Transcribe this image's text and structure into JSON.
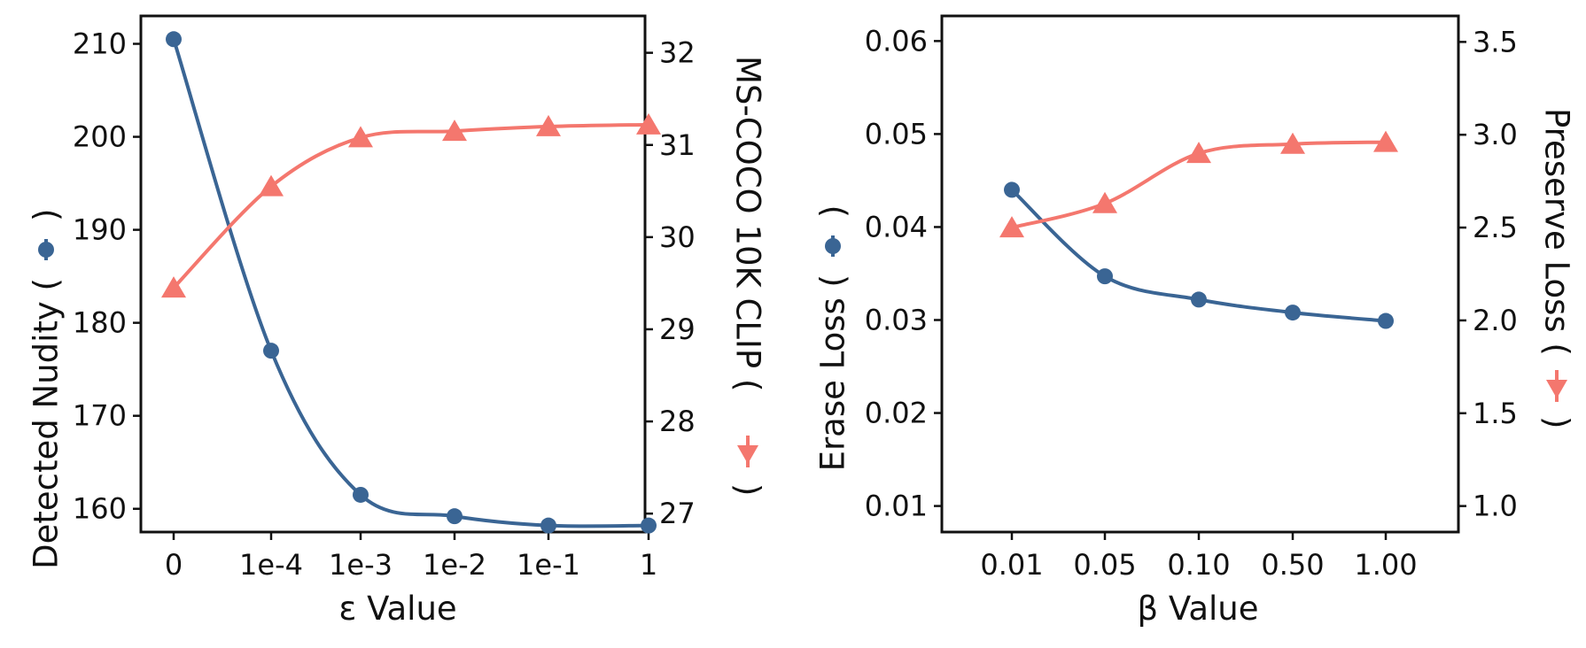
{
  "colors": {
    "blue": "#3a6594",
    "red": "#f4776e",
    "axis": "#111111"
  },
  "chart_data": [
    {
      "type": "line",
      "xlabel": "ε Value",
      "ylabel_left": "Detected Nudity (",
      "ylabel_left_close": ")",
      "ylabel_right": "MS-COCO 10K CLIP (",
      "ylabel_right_close": ")",
      "categories": [
        "0",
        "1e-4",
        "1e-3",
        "1e-2",
        "1e-1",
        "1"
      ],
      "left_axis": {
        "ylim": [
          157.5,
          213
        ],
        "ticks": [
          160,
          170,
          180,
          190,
          200,
          210
        ]
      },
      "right_axis": {
        "ylim": [
          26.8,
          32.4
        ],
        "ticks": [
          27,
          28,
          29,
          30,
          31,
          32
        ]
      },
      "series": [
        {
          "axis": "left",
          "marker": "circle",
          "color": "#3a6594",
          "values": [
            210.5,
            177,
            161.5,
            159.2,
            158.2,
            158.2
          ]
        },
        {
          "axis": "right",
          "marker": "triangle",
          "color": "#f4776e",
          "values": [
            29.45,
            30.55,
            31.08,
            31.15,
            31.2,
            31.22
          ]
        }
      ],
      "grid": false
    },
    {
      "type": "line",
      "xlabel": "β Value",
      "ylabel_left": "Erase Loss (",
      "ylabel_left_close": ")",
      "ylabel_right": "Preserve Loss (",
      "ylabel_right_close": ")",
      "categories": [
        "0.01",
        "0.05",
        "0.10",
        "0.50",
        "1.00"
      ],
      "left_axis": {
        "ylim": [
          0.0072,
          0.0627
        ],
        "ticks": [
          0.01,
          0.02,
          0.03,
          0.04,
          0.05,
          0.06
        ],
        "tick_labels": [
          "0.01",
          "0.02",
          "0.03",
          "0.04",
          "0.05",
          "0.06"
        ]
      },
      "right_axis": {
        "ylim": [
          0.86,
          3.64
        ],
        "ticks": [
          1.0,
          1.5,
          2.0,
          2.5,
          3.0,
          3.5
        ],
        "tick_labels": [
          "1.0",
          "1.5",
          "2.0",
          "2.5",
          "3.0",
          "3.5"
        ]
      },
      "series": [
        {
          "axis": "left",
          "marker": "circle",
          "color": "#3a6594",
          "values": [
            0.044,
            0.0347,
            0.0322,
            0.0308,
            0.0299
          ]
        },
        {
          "axis": "right",
          "marker": "triangle",
          "color": "#f4776e",
          "values": [
            2.5,
            2.63,
            2.9,
            2.95,
            2.96
          ]
        }
      ],
      "grid": false
    }
  ]
}
